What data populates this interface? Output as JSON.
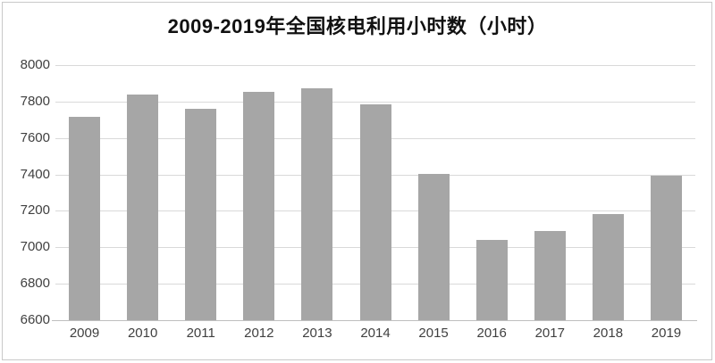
{
  "title": "2009-2019年全国核电利用小时数（小时）",
  "colors": {
    "bar": "#a6a6a6",
    "gridline": "#d9d9d9",
    "axis_line": "#bfbfbf",
    "tick_text": "#404040",
    "title_text": "#111111",
    "border": "#c9c9c9",
    "background": "#ffffff"
  },
  "chart_data": {
    "type": "bar",
    "title": "2009-2019年全国核电利用小时数（小时）",
    "categories": [
      "2009",
      "2010",
      "2011",
      "2012",
      "2013",
      "2014",
      "2015",
      "2016",
      "2017",
      "2018",
      "2019"
    ],
    "values": [
      7716,
      7840,
      7759,
      7855,
      7874,
      7787,
      7403,
      7042,
      7089,
      7184,
      7394
    ],
    "xlabel": "",
    "ylabel": "",
    "ylim": [
      6600,
      8000
    ],
    "ytick_step": 200,
    "ytick_labels": [
      "6600",
      "6800",
      "7000",
      "7200",
      "7400",
      "7600",
      "7800",
      "8000"
    ],
    "grid": true,
    "legend": "none",
    "bar_color": "#a6a6a6"
  }
}
